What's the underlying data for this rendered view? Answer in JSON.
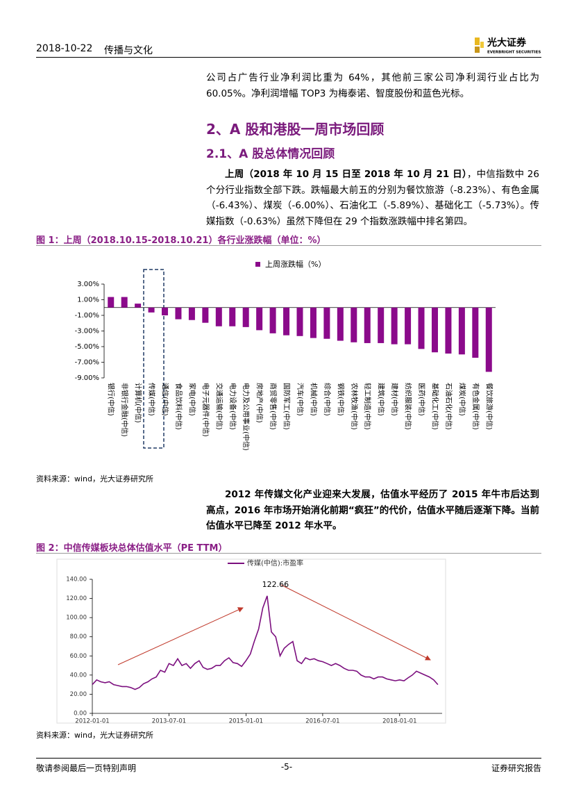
{
  "header": {
    "date": "2018-10-22",
    "sector": "传播与文化",
    "logo_cn": "光大证券",
    "logo_en": "EVERBRIGHT SECURITIES"
  },
  "paragraph_1": "公司占广告行业净利润比重为 64%，其他前三家公司净利润行业占比为 60.05%。净利润增幅 TOP3 为梅泰诺、智度股份和蓝色光标。",
  "heading_1": "2、A 股和港股一周市场回顾",
  "heading_2": "2.1、A 股总体情况回顾",
  "paragraph_2": {
    "lead": "上周（2018 年 10 月 15 日至 2018 年 10 月 21 日）",
    "rest": "，中信指数中 26 个分行业指数全部下跌。跌幅最大前五的分别为餐饮旅游（-8.23%）、有色金属（-6.43%）、煤炭（-6.00%）、石油化工（-5.89%）、基础化工（-5.73%）。传媒指数（-0.63%）虽然下降但在 29 个指数涨跌幅中排名第四。"
  },
  "figure_1": {
    "caption": "图 1：上周（2018.10.15-2018.10.21）各行业涨跌幅（单位：%）",
    "source": "资料来源：wind，光大证券研究所"
  },
  "paragraph_3": "2012 年传媒文化产业迎来大发展，估值水平经历了 2015 年牛市后达到高点，2016 年市场开始消化前期“疯狂”的代价，估值水平随后逐渐下降。当前估值水平已降至 2012 年水平。",
  "figure_2": {
    "caption": "图 2：中信传媒板块总体估值水平（PE TTM）",
    "source": "资料来源：wind，光大证券研究所"
  },
  "footer": {
    "left": "敬请参阅最后一页特别声明",
    "center": "-5-",
    "right": "证券研究报告"
  },
  "chart_data": [
    {
      "type": "bar",
      "categories": [
        "银行(中信)",
        "非银行金融(中信)",
        "计算机(中信)",
        "传媒(中信)",
        "通信(中信)",
        "食品饮料(中信)",
        "家电(中信)",
        "电子元器件(中信)",
        "交通运输(中信)",
        "电力设备(中信)",
        "电力及公用事业(中信)",
        "房地产(中信)",
        "商贸零售(中信)",
        "国防军工(中信)",
        "汽车(中信)",
        "机械(中信)",
        "综合(中信)",
        "钢铁(中信)",
        "农林牧渔(中信)",
        "轻工制造(中信)",
        "建筑(中信)",
        "建材(中信)",
        "纺织服装(中信)",
        "医药(中信)",
        "基础化工(中信)",
        "石油石化(中信)",
        "煤炭(中信)",
        "有色金属(中信)",
        "餐饮旅游(中信)"
      ],
      "series": [
        {
          "name": "上周涨跌幅（%）",
          "color": "#8b0a8b",
          "values": [
            1.35,
            1.35,
            0.5,
            -0.63,
            -1.0,
            -1.5,
            -1.6,
            -1.95,
            -2.4,
            -2.4,
            -2.5,
            -2.9,
            -3.3,
            -3.55,
            -3.65,
            -3.9,
            -4.0,
            -4.25,
            -4.45,
            -4.55,
            -4.55,
            -4.7,
            -4.7,
            -5.3,
            -5.73,
            -5.89,
            -6.0,
            -6.43,
            -8.23
          ]
        }
      ],
      "ylim": [
        -9,
        3
      ],
      "yticks": [
        {
          "value": 3,
          "label": "3.00%"
        },
        {
          "value": 1,
          "label": "1.00%"
        },
        {
          "value": -1,
          "label": "-1.00%"
        },
        {
          "value": -3,
          "label": "-3.00%"
        },
        {
          "value": -5,
          "label": "-5.00%"
        },
        {
          "value": -7,
          "label": "-7.00%"
        },
        {
          "value": -9,
          "label": "-9.00%"
        }
      ],
      "grid": false,
      "legend": "top"
    },
    {
      "type": "line",
      "x": [
        "2012-01-01",
        "2012-02-01",
        "2012-03-01",
        "2012-04-01",
        "2012-05-01",
        "2012-06-01",
        "2012-07-01",
        "2012-08-01",
        "2012-09-01",
        "2012-10-01",
        "2012-11-01",
        "2012-12-01",
        "2013-01-01",
        "2013-02-01",
        "2013-03-01",
        "2013-04-01",
        "2013-05-01",
        "2013-06-01",
        "2013-07-01",
        "2013-08-01",
        "2013-09-01",
        "2013-10-01",
        "2013-11-01",
        "2013-12-01",
        "2014-01-01",
        "2014-02-01",
        "2014-03-01",
        "2014-04-01",
        "2014-05-01",
        "2014-06-01",
        "2014-07-01",
        "2014-08-01",
        "2014-09-01",
        "2014-10-01",
        "2014-11-01",
        "2014-12-01",
        "2015-01-01",
        "2015-02-01",
        "2015-03-01",
        "2015-04-01",
        "2015-05-01",
        "2015-06-01",
        "2015-07-01",
        "2015-08-01",
        "2015-09-01",
        "2015-10-01",
        "2015-11-01",
        "2015-12-01",
        "2016-01-01",
        "2016-02-01",
        "2016-03-01",
        "2016-04-01",
        "2016-05-01",
        "2016-06-01",
        "2016-07-01",
        "2016-08-01",
        "2016-09-01",
        "2016-10-01",
        "2016-11-01",
        "2016-12-01",
        "2017-01-01",
        "2017-02-01",
        "2017-03-01",
        "2017-04-01",
        "2017-05-01",
        "2017-06-01",
        "2017-07-01",
        "2017-08-01",
        "2017-09-01",
        "2017-10-01",
        "2017-11-01",
        "2017-12-01",
        "2018-01-01",
        "2018-02-01",
        "2018-03-01",
        "2018-04-01",
        "2018-05-01",
        "2018-06-01",
        "2018-07-01",
        "2018-08-01",
        "2018-09-01",
        "2018-10-01"
      ],
      "series": [
        {
          "name": "传媒(中信):市盈率",
          "color": "#7b0e7e",
          "values": [
            30,
            35,
            33,
            32,
            33,
            30,
            29,
            28,
            28,
            27,
            25,
            27,
            31,
            33,
            36,
            38,
            45,
            43,
            52,
            50,
            57,
            50,
            52,
            47,
            52,
            55,
            48,
            46,
            47,
            50,
            50,
            55,
            58,
            53,
            52,
            49,
            55,
            62,
            75,
            88,
            110,
            122.66,
            85,
            80,
            60,
            68,
            72,
            75,
            55,
            52,
            58,
            56,
            57,
            55,
            54,
            52,
            50,
            52,
            50,
            47,
            45,
            45,
            44,
            40,
            38,
            38,
            36,
            38,
            38,
            36,
            35,
            34,
            35,
            34,
            37,
            40,
            44,
            42,
            40,
            38,
            35,
            30
          ],
          "value_labels": [
            null,
            null,
            null,
            null,
            null,
            null,
            null,
            null,
            null,
            null,
            null,
            null,
            null,
            null,
            null,
            null,
            null,
            null,
            null,
            null,
            null,
            null,
            null,
            null,
            null,
            null,
            null,
            null,
            null,
            null,
            null,
            null,
            null,
            null,
            null,
            null,
            null,
            null,
            null,
            null,
            null,
            "122.66",
            null,
            null,
            null,
            null,
            null,
            null,
            null,
            null,
            null,
            null,
            null,
            null,
            null,
            null,
            null,
            null,
            null,
            null,
            null,
            null,
            null,
            null,
            null,
            null,
            null,
            null,
            null,
            null,
            null,
            null,
            null,
            null,
            null,
            null,
            null,
            null,
            null,
            null,
            null,
            null
          ]
        }
      ],
      "xlim": [
        "2012-01-01",
        "2018-10-31"
      ],
      "xticks": [
        "2012-01-01",
        "2013-07-01",
        "2015-01-01",
        "2016-07-01",
        "2018-01-01"
      ],
      "ylim": [
        0,
        140
      ],
      "yticks": [
        {
          "value": 0,
          "label": "0.00"
        },
        {
          "value": 20,
          "label": "20.00"
        },
        {
          "value": 40,
          "label": "40.00"
        },
        {
          "value": 60,
          "label": "60.00"
        },
        {
          "value": 80,
          "label": "80.00"
        },
        {
          "value": 100,
          "label": "100.00"
        },
        {
          "value": 120,
          "label": "120.00"
        },
        {
          "value": 140,
          "label": "140.00"
        }
      ],
      "grid": false,
      "legend": "top"
    }
  ]
}
